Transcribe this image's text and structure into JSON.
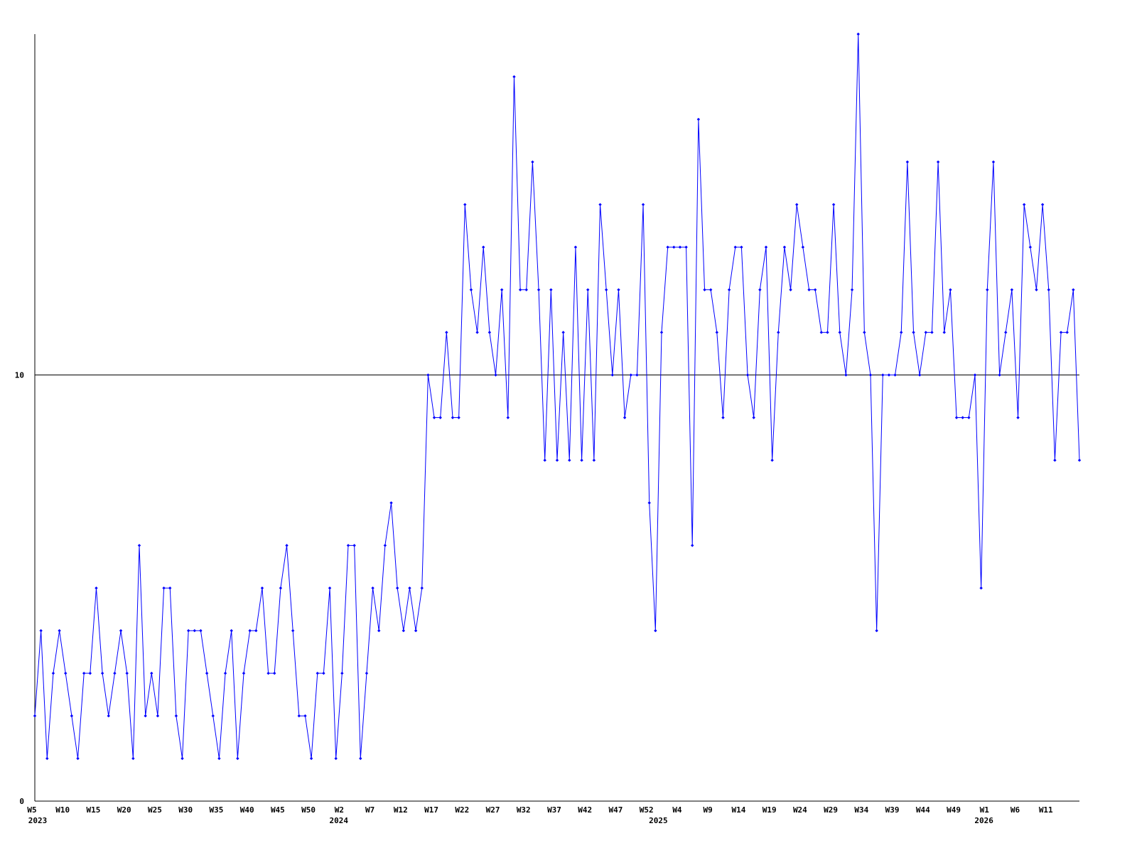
{
  "chart_data": {
    "type": "line",
    "categories": [
      "W5",
      null,
      null,
      null,
      null,
      "W10",
      null,
      null,
      null,
      null,
      "W15",
      null,
      null,
      null,
      null,
      "W20",
      null,
      null,
      null,
      null,
      "W25",
      null,
      null,
      null,
      null,
      "W30",
      null,
      null,
      null,
      null,
      "W35",
      null,
      null,
      null,
      null,
      "W40",
      null,
      null,
      null,
      null,
      "W45",
      null,
      null,
      null,
      null,
      "W50",
      null,
      null,
      null,
      null,
      "W2",
      null,
      null,
      null,
      null,
      "W7",
      null,
      null,
      null,
      null,
      "W12",
      null,
      null,
      null,
      null,
      "W17",
      null,
      null,
      null,
      null,
      "W22",
      null,
      null,
      null,
      null,
      "W27",
      null,
      null,
      null,
      null,
      "W32",
      null,
      null,
      null,
      null,
      "W37",
      null,
      null,
      null,
      null,
      "W42",
      null,
      null,
      null,
      null,
      "W47",
      null,
      null,
      null,
      null,
      "W52",
      null,
      null,
      null,
      null,
      "W4",
      null,
      null,
      null,
      null,
      "W9",
      null,
      null,
      null,
      null,
      "W14",
      null,
      null,
      null,
      null,
      "W19",
      null,
      null,
      null,
      null,
      "W24",
      null,
      null,
      null,
      null,
      "W29",
      null,
      null,
      null,
      null,
      "W34",
      null,
      null,
      null,
      null,
      "W39",
      null,
      null,
      null,
      null,
      "W44",
      null,
      null,
      null,
      null,
      "W49",
      null,
      null,
      null,
      null,
      "W1",
      null,
      null,
      null,
      null,
      "W6",
      null,
      null,
      null,
      null,
      "W11",
      null,
      null,
      null,
      null,
      null
    ],
    "x_groups": [
      "2023",
      null,
      null,
      null,
      null,
      null,
      null,
      null,
      null,
      null,
      null,
      null,
      null,
      null,
      null,
      null,
      null,
      null,
      null,
      null,
      null,
      null,
      null,
      null,
      null,
      null,
      null,
      null,
      null,
      null,
      null,
      null,
      null,
      null,
      null,
      null,
      null,
      null,
      null,
      null,
      null,
      null,
      null,
      null,
      null,
      null,
      null,
      null,
      null,
      "2024",
      null,
      null,
      null,
      null,
      null,
      null,
      null,
      null,
      null,
      null,
      null,
      null,
      null,
      null,
      null,
      null,
      null,
      null,
      null,
      null,
      null,
      null,
      null,
      null,
      null,
      null,
      null,
      null,
      null,
      null,
      null,
      null,
      null,
      null,
      null,
      null,
      null,
      null,
      null,
      null,
      null,
      null,
      null,
      null,
      null,
      null,
      null,
      null,
      null,
      null,
      null,
      "2025",
      null,
      null,
      null,
      null,
      null,
      null,
      null,
      null,
      null,
      null,
      null,
      null,
      null,
      null,
      null,
      null,
      null,
      null,
      null,
      null,
      null,
      null,
      null,
      null,
      null,
      null,
      null,
      null,
      null,
      null,
      null,
      null,
      null,
      null,
      null,
      null,
      null,
      null,
      null,
      null,
      null,
      null,
      null,
      null,
      null,
      null,
      null,
      null,
      null,
      null,
      null,
      null,
      "2026",
      null,
      null,
      null,
      null,
      null,
      null,
      null,
      null,
      null,
      null,
      null,
      null,
      null,
      null,
      null,
      null
    ],
    "series": [
      {
        "color": "#0000ff",
        "values": [
          2,
          4,
          1,
          3,
          4,
          3,
          2,
          1,
          3,
          3,
          5,
          3,
          2,
          3,
          4,
          3,
          1,
          6,
          2,
          3,
          2,
          5,
          5,
          2,
          1,
          4,
          4,
          4,
          3,
          2,
          1,
          3,
          4,
          1,
          3,
          4,
          4,
          5,
          3,
          3,
          5,
          6,
          4,
          2,
          2,
          1,
          3,
          3,
          5,
          1,
          3,
          6,
          6,
          1,
          3,
          5,
          4,
          6,
          7,
          5,
          4,
          5,
          4,
          5,
          10,
          9,
          9,
          11,
          9,
          9,
          14,
          12,
          11,
          13,
          11,
          10,
          12,
          9,
          17,
          12,
          12,
          15,
          12,
          8,
          12,
          8,
          11,
          8,
          13,
          8,
          12,
          8,
          14,
          12,
          10,
          12,
          9,
          10,
          10,
          14,
          7,
          4,
          11,
          13,
          13,
          13,
          13,
          6,
          16,
          12,
          12,
          11,
          9,
          12,
          13,
          13,
          10,
          9,
          12,
          13,
          8,
          11,
          13,
          12,
          14,
          13,
          12,
          12,
          11,
          11,
          14,
          11,
          10,
          12,
          18,
          11,
          10,
          4,
          10,
          10,
          10,
          11,
          15,
          11,
          10,
          11,
          11,
          15,
          11,
          12,
          9,
          9,
          9,
          10,
          5,
          12,
          15,
          10,
          11,
          12,
          9,
          14,
          13,
          12,
          14,
          12,
          8,
          11,
          11,
          12,
          8
        ]
      }
    ],
    "ylim": [
      0,
      18
    ],
    "yticks": [
      0,
      10
    ],
    "grid": true
  }
}
